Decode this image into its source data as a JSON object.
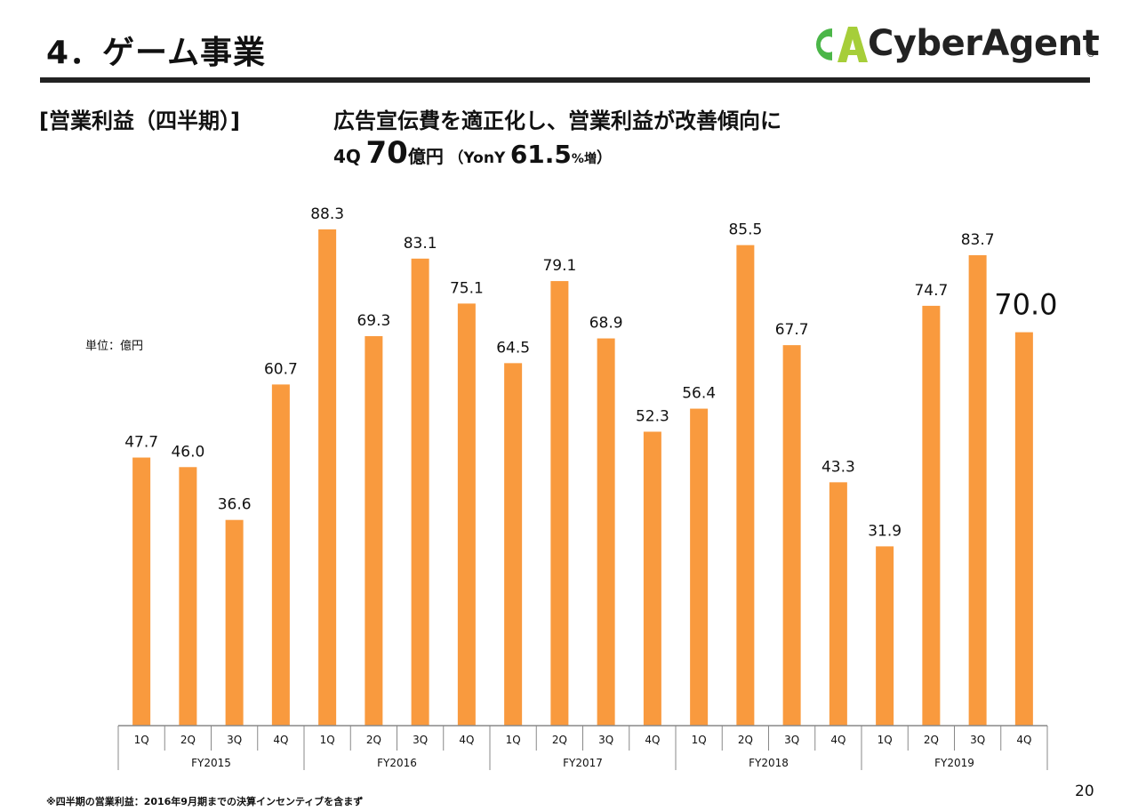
{
  "slide": {
    "title": "4．ゲーム事業",
    "subtitle": "[営業利益（四半期）]",
    "headline": "広告宣伝費を適正化し、営業利益が改善傾向に",
    "summary": {
      "quarter": "4Q",
      "value": "70",
      "unit": "億円",
      "open": "（",
      "yoy_label": "YonY",
      "yoy_value": "61.5",
      "yoy_unit": "%増",
      "close": "）"
    },
    "unit_label": "単位：億円",
    "footnote": "※四半期の営業利益：2016年9月期までの決算インセンティブを含まず",
    "page_number": "20"
  },
  "logo": {
    "mark": "CA",
    "text": "CyberAgent",
    "registered": "®",
    "color_green": "#4bb648",
    "color_lime": "#a6ce39"
  },
  "chart_data": {
    "type": "bar",
    "bar_color": "#f99a3e",
    "categories": [
      "1Q",
      "2Q",
      "3Q",
      "4Q",
      "1Q",
      "2Q",
      "3Q",
      "4Q",
      "1Q",
      "2Q",
      "3Q",
      "4Q",
      "1Q",
      "2Q",
      "3Q",
      "4Q",
      "1Q",
      "2Q",
      "3Q",
      "4Q"
    ],
    "groups": [
      "FY2015",
      "FY2016",
      "FY2017",
      "FY2018",
      "FY2019"
    ],
    "values": [
      47.7,
      46.0,
      36.6,
      60.7,
      88.3,
      69.3,
      83.1,
      75.1,
      64.5,
      79.1,
      68.9,
      52.3,
      56.4,
      85.5,
      67.7,
      43.3,
      31.9,
      74.7,
      83.7,
      70.0
    ],
    "labels": [
      "47.7",
      "46.0",
      "36.6",
      "60.7",
      "88.3",
      "69.3",
      "83.1",
      "75.1",
      "64.5",
      "79.1",
      "68.9",
      "52.3",
      "56.4",
      "85.5",
      "67.7",
      "43.3",
      "31.9",
      "74.7",
      "83.7",
      "70.0"
    ],
    "highlight_index": 19,
    "ylim": [
      0,
      100
    ],
    "grid": false,
    "legend": "none"
  }
}
